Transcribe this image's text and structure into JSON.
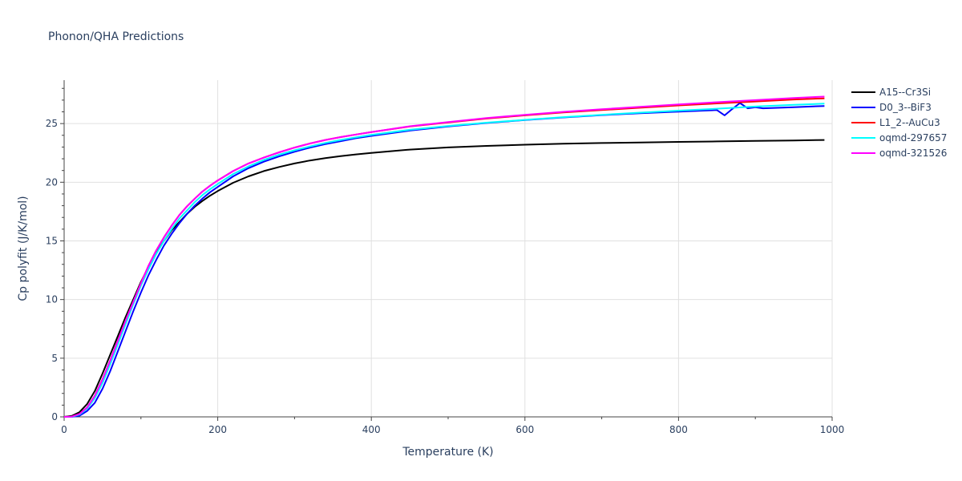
{
  "chart_data": {
    "type": "line",
    "title": "Phonon/QHA Predictions",
    "xlabel": "Temperature (K)",
    "ylabel": "Cp polyfit (J/K/mol)",
    "xlim": [
      0,
      1000
    ],
    "ylim": [
      0,
      28.7
    ],
    "xticks": [
      0,
      200,
      400,
      600,
      800,
      1000
    ],
    "yticks": [
      0,
      5,
      10,
      15,
      20,
      25
    ],
    "grid": true,
    "legend_position": "right",
    "series": [
      {
        "name": "A15--Cr3Si",
        "color": "#000000",
        "x": [
          0,
          10,
          20,
          30,
          40,
          50,
          60,
          70,
          80,
          90,
          100,
          110,
          120,
          130,
          140,
          150,
          160,
          170,
          180,
          190,
          200,
          220,
          240,
          260,
          280,
          300,
          320,
          340,
          360,
          380,
          400,
          450,
          500,
          550,
          600,
          650,
          700,
          750,
          800,
          850,
          900,
          950,
          990
        ],
        "y": [
          0,
          0.08,
          0.4,
          1.1,
          2.2,
          3.7,
          5.3,
          6.9,
          8.5,
          10.0,
          11.5,
          12.8,
          14.0,
          15.0,
          15.9,
          16.6,
          17.3,
          17.9,
          18.4,
          18.85,
          19.25,
          19.95,
          20.5,
          20.95,
          21.3,
          21.6,
          21.85,
          22.05,
          22.22,
          22.37,
          22.5,
          22.78,
          22.97,
          23.1,
          23.2,
          23.28,
          23.34,
          23.39,
          23.44,
          23.48,
          23.52,
          23.56,
          23.6
        ]
      },
      {
        "name": "D0_3--BiF3",
        "color": "#0000ff",
        "x": [
          0,
          10,
          20,
          30,
          40,
          50,
          60,
          70,
          80,
          90,
          100,
          110,
          120,
          130,
          140,
          150,
          160,
          170,
          180,
          190,
          200,
          220,
          240,
          260,
          280,
          300,
          320,
          340,
          360,
          380,
          400,
          450,
          500,
          550,
          600,
          650,
          700,
          750,
          800,
          850,
          860,
          870,
          880,
          890,
          900,
          910,
          950,
          990
        ],
        "y": [
          0,
          0.0,
          0.1,
          0.5,
          1.2,
          2.4,
          3.9,
          5.6,
          7.3,
          9.0,
          10.6,
          12.1,
          13.4,
          14.6,
          15.6,
          16.5,
          17.3,
          18.0,
          18.6,
          19.15,
          19.6,
          20.5,
          21.2,
          21.75,
          22.2,
          22.6,
          22.95,
          23.25,
          23.5,
          23.75,
          23.95,
          24.4,
          24.75,
          25.05,
          25.3,
          25.52,
          25.72,
          25.88,
          26.02,
          26.15,
          25.7,
          26.25,
          26.75,
          26.3,
          26.4,
          26.3,
          26.4,
          26.5
        ]
      },
      {
        "name": "L1_2--AuCu3",
        "color": "#ff0000",
        "x": [
          0,
          10,
          20,
          30,
          40,
          50,
          60,
          70,
          80,
          90,
          100,
          110,
          120,
          130,
          140,
          150,
          160,
          170,
          180,
          190,
          200,
          220,
          240,
          260,
          280,
          300,
          320,
          340,
          360,
          380,
          400,
          450,
          500,
          550,
          600,
          650,
          700,
          750,
          800,
          850,
          900,
          950,
          990
        ],
        "y": [
          0,
          0.02,
          0.25,
          0.8,
          1.8,
          3.2,
          4.8,
          6.5,
          8.2,
          9.8,
          11.4,
          12.9,
          14.2,
          15.3,
          16.3,
          17.2,
          17.95,
          18.6,
          19.2,
          19.7,
          20.15,
          20.95,
          21.6,
          22.1,
          22.55,
          22.95,
          23.3,
          23.6,
          23.85,
          24.07,
          24.27,
          24.75,
          25.1,
          25.43,
          25.7,
          25.95,
          26.15,
          26.35,
          26.55,
          26.72,
          26.88,
          27.05,
          27.15
        ]
      },
      {
        "name": "oqmd-297657",
        "color": "#00ffff",
        "x": [
          0,
          10,
          20,
          30,
          40,
          50,
          60,
          70,
          80,
          90,
          100,
          110,
          120,
          130,
          140,
          150,
          160,
          170,
          180,
          190,
          200,
          220,
          240,
          260,
          280,
          300,
          320,
          340,
          360,
          380,
          400,
          450,
          500,
          550,
          600,
          650,
          700,
          750,
          800,
          850,
          900,
          950,
          990
        ],
        "y": [
          0,
          0.01,
          0.2,
          0.7,
          1.6,
          2.9,
          4.5,
          6.2,
          7.9,
          9.6,
          11.2,
          12.6,
          13.9,
          15.0,
          16.0,
          16.9,
          17.6,
          18.3,
          18.9,
          19.4,
          19.85,
          20.7,
          21.35,
          21.9,
          22.35,
          22.72,
          23.05,
          23.35,
          23.6,
          23.83,
          24.03,
          24.47,
          24.8,
          25.08,
          25.32,
          25.55,
          25.75,
          25.93,
          26.1,
          26.27,
          26.45,
          26.6,
          26.7
        ]
      },
      {
        "name": "oqmd-321526",
        "color": "#ff00ff",
        "x": [
          0,
          10,
          20,
          30,
          40,
          50,
          60,
          70,
          80,
          90,
          100,
          110,
          120,
          130,
          140,
          150,
          160,
          170,
          180,
          190,
          200,
          220,
          240,
          260,
          280,
          300,
          320,
          340,
          360,
          380,
          400,
          450,
          500,
          550,
          600,
          650,
          700,
          750,
          800,
          850,
          900,
          950,
          990
        ],
        "y": [
          0,
          0.02,
          0.25,
          0.8,
          1.8,
          3.2,
          4.8,
          6.5,
          8.2,
          9.8,
          11.4,
          12.9,
          14.2,
          15.3,
          16.3,
          17.2,
          17.95,
          18.6,
          19.2,
          19.7,
          20.15,
          20.95,
          21.6,
          22.1,
          22.55,
          22.95,
          23.3,
          23.6,
          23.85,
          24.07,
          24.27,
          24.77,
          25.13,
          25.47,
          25.75,
          26.0,
          26.22,
          26.43,
          26.63,
          26.82,
          27.0,
          27.18,
          27.3
        ]
      }
    ]
  }
}
